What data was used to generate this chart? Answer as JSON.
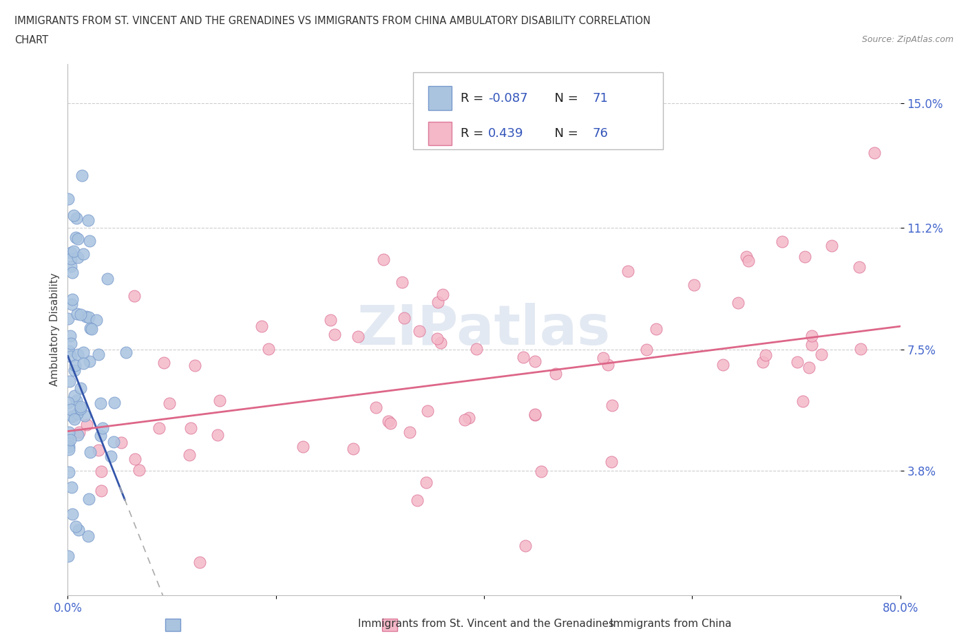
{
  "title_line1": "IMMIGRANTS FROM ST. VINCENT AND THE GRENADINES VS IMMIGRANTS FROM CHINA AMBULATORY DISABILITY CORRELATION",
  "title_line2": "CHART",
  "source_text": "Source: ZipAtlas.com",
  "ylabel": "Ambulatory Disability",
  "x_min": 0.0,
  "x_max": 0.8,
  "y_min": 0.0,
  "y_max": 0.162,
  "yticks": [
    0.038,
    0.075,
    0.112,
    0.15
  ],
  "ytick_labels": [
    "3.8%",
    "7.5%",
    "11.2%",
    "15.0%"
  ],
  "xticks": [
    0.0,
    0.2,
    0.4,
    0.6,
    0.8
  ],
  "xtick_labels": [
    "0.0%",
    "",
    "",
    "",
    "80.0%"
  ],
  "series1_color": "#aac4e0",
  "series1_edge_color": "#7799cc",
  "series1_line_color": "#3355aa",
  "series1_label": "Immigrants from St. Vincent and the Grenadines",
  "series1_R": -0.087,
  "series1_N": 71,
  "series2_color": "#f4b8c8",
  "series2_edge_color": "#dd7799",
  "series2_line_color": "#dd6688",
  "series2_label": "Immigrants from China",
  "series2_R": 0.439,
  "series2_N": 76,
  "watermark": "ZIPatlas",
  "background_color": "#ffffff",
  "grid_color": "#cccccc",
  "ytick_color": "#4466cc",
  "xtick_color_ends": "#4466cc"
}
